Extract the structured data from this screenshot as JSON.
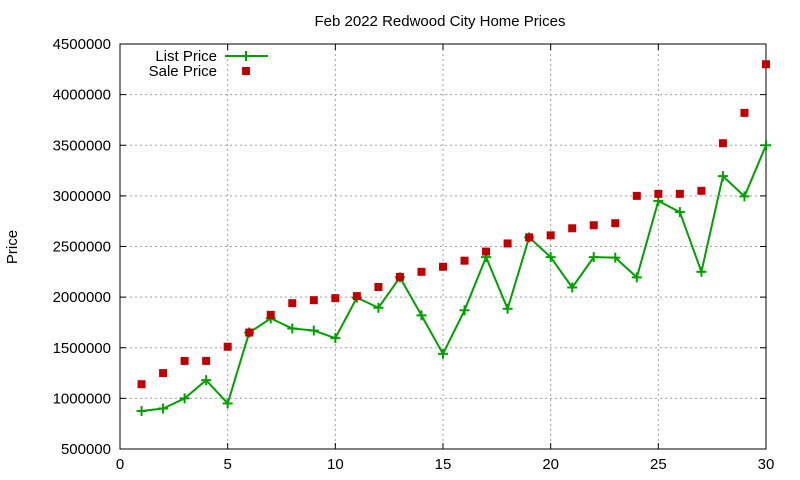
{
  "chart_data": {
    "type": "line",
    "title": "Feb 2022 Redwood City Home Prices",
    "xlabel": "",
    "ylabel": "Price",
    "xlim": [
      0,
      30
    ],
    "ylim": [
      500000,
      4500000
    ],
    "xticks": [
      0,
      5,
      10,
      15,
      20,
      25,
      30
    ],
    "yticks": [
      500000,
      1000000,
      1500000,
      2000000,
      2500000,
      3000000,
      3500000,
      4000000,
      4500000
    ],
    "grid": true,
    "legend_position": "top-left",
    "x": [
      1,
      2,
      3,
      4,
      5,
      6,
      7,
      8,
      9,
      10,
      11,
      12,
      13,
      14,
      15,
      16,
      17,
      18,
      19,
      20,
      21,
      22,
      23,
      24,
      25,
      26,
      27,
      28,
      29,
      30
    ],
    "series": [
      {
        "name": "List Price",
        "style": "line-cross",
        "color": "#00a000",
        "values": [
          875000,
          900000,
          1000000,
          1180000,
          950000,
          1650000,
          1790000,
          1690000,
          1670000,
          1595000,
          1995000,
          1895000,
          2195000,
          1820000,
          1440000,
          1870000,
          2395000,
          1885000,
          2590000,
          2395000,
          2095000,
          2395000,
          2390000,
          2195000,
          2950000,
          2840000,
          2250000,
          3195000,
          2995000,
          3500000
        ]
      },
      {
        "name": "Sale Price",
        "style": "square",
        "color": "#c00000",
        "values": [
          1140000,
          1250000,
          1370000,
          1370000,
          1510000,
          1650000,
          1825000,
          1940000,
          1970000,
          1990000,
          2010000,
          2100000,
          2200000,
          2250000,
          2300000,
          2360000,
          2450000,
          2530000,
          2590000,
          2610000,
          2680000,
          2710000,
          2730000,
          3000000,
          3020000,
          3020000,
          3050000,
          3520000,
          3820000,
          4300000
        ]
      }
    ]
  }
}
